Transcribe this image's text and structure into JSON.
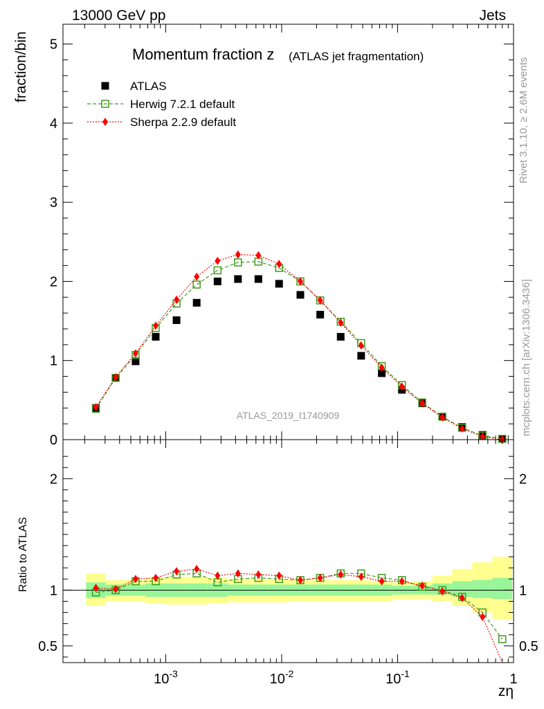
{
  "header": {
    "energy_label": "13000 GeV pp",
    "category_label": "Jets"
  },
  "side_labels": {
    "rivet": "Rivet 3.1.10, ≥ 2.6M events",
    "mcplots": "mcplots.cern.ch [arXiv:1306.3436]"
  },
  "chart_data": [
    {
      "type": "scatter",
      "title": "Momentum fraction z",
      "title_suffix": "(ATLAS jet fragmentation)",
      "ylabel": "fraction/bin",
      "xlabel": "zη",
      "x_scale": "log",
      "xlim": [
        0.00013,
        1.0
      ],
      "ylim": [
        0,
        5.25
      ],
      "y_ticks": [
        "0",
        "1",
        "2",
        "3",
        "4",
        "5"
      ],
      "x_ticks": [
        "10^-3",
        "10^-2",
        "10^-1",
        "1"
      ],
      "watermark": "ATLAS_2019_I1740909",
      "legend_position": "top-left",
      "colors": {
        "data": "#000000",
        "herwig": "#3f9a1a",
        "sherpa": "#ff0000"
      },
      "x": [
        0.00025,
        0.00037,
        0.00055,
        0.00082,
        0.00124,
        0.00185,
        0.0028,
        0.0042,
        0.0063,
        0.0095,
        0.0145,
        0.0215,
        0.0323,
        0.0485,
        0.073,
        0.109,
        0.163,
        0.243,
        0.36,
        0.54,
        0.8
      ],
      "series": [
        {
          "name": "ATLAS",
          "marker": "filled-square",
          "values": [
            0.4,
            0.78,
            0.99,
            1.3,
            1.51,
            1.73,
            2.0,
            2.03,
            2.03,
            1.97,
            1.83,
            1.58,
            1.3,
            1.06,
            0.84,
            0.63,
            0.46,
            0.29,
            0.16,
            0.06,
            0.01
          ]
        },
        {
          "name": "Herwig 7.2.1 default",
          "marker": "open-square",
          "line": "dashed",
          "values": [
            0.39,
            0.78,
            1.07,
            1.41,
            1.72,
            1.96,
            2.14,
            2.24,
            2.25,
            2.17,
            2.0,
            1.76,
            1.49,
            1.22,
            0.93,
            0.69,
            0.47,
            0.29,
            0.15,
            0.05,
            0.01
          ]
        },
        {
          "name": "Sherpa 2.2.9 default",
          "marker": "diamond",
          "line": "dotted",
          "values": [
            0.41,
            0.79,
            1.09,
            1.44,
            1.77,
            2.06,
            2.26,
            2.34,
            2.33,
            2.22,
            2.0,
            1.76,
            1.48,
            1.19,
            0.91,
            0.67,
            0.46,
            0.28,
            0.14,
            0.04,
            0.0
          ]
        }
      ]
    },
    {
      "type": "scatter",
      "ylabel": "Ratio to ATLAS",
      "xlabel": "zη",
      "x_scale": "log",
      "xlim": [
        0.00013,
        1.0
      ],
      "ylim": [
        0.35,
        2.35
      ],
      "y_ticks": [
        "0.5",
        "1",
        "2"
      ],
      "colors": {
        "inner_band": "#99f599",
        "outer_band": "#ffff90",
        "herwig": "#3f9a1a",
        "sherpa": "#ff0000"
      },
      "x": [
        0.00025,
        0.00037,
        0.00055,
        0.00082,
        0.00124,
        0.00185,
        0.0028,
        0.0042,
        0.0063,
        0.0095,
        0.0145,
        0.0215,
        0.0323,
        0.0485,
        0.073,
        0.109,
        0.163,
        0.243,
        0.36,
        0.54,
        0.8
      ],
      "bands": {
        "inner_low": [
          0.93,
          0.95,
          0.95,
          0.94,
          0.94,
          0.94,
          0.94,
          0.95,
          0.95,
          0.95,
          0.95,
          0.95,
          0.95,
          0.95,
          0.95,
          0.96,
          0.96,
          0.96,
          0.94,
          0.93,
          0.92
        ],
        "inner_high": [
          1.07,
          1.05,
          1.05,
          1.06,
          1.06,
          1.06,
          1.06,
          1.05,
          1.05,
          1.05,
          1.05,
          1.05,
          1.05,
          1.05,
          1.05,
          1.04,
          1.04,
          1.06,
          1.08,
          1.09,
          1.11
        ],
        "outer_low": [
          0.86,
          0.9,
          0.9,
          0.88,
          0.87,
          0.87,
          0.88,
          0.89,
          0.89,
          0.89,
          0.9,
          0.9,
          0.9,
          0.9,
          0.9,
          0.92,
          0.92,
          0.9,
          0.86,
          0.8,
          0.74
        ],
        "outer_high": [
          1.15,
          1.09,
          1.09,
          1.11,
          1.12,
          1.12,
          1.11,
          1.1,
          1.1,
          1.1,
          1.09,
          1.09,
          1.09,
          1.09,
          1.08,
          1.07,
          1.08,
          1.13,
          1.19,
          1.25,
          1.3
        ]
      },
      "series": [
        {
          "name": "Herwig 7.2.1 default",
          "marker": "open-square",
          "line": "dashed",
          "values": [
            0.98,
            1.0,
            1.08,
            1.08,
            1.14,
            1.15,
            1.07,
            1.1,
            1.11,
            1.1,
            1.09,
            1.11,
            1.15,
            1.15,
            1.11,
            1.09,
            1.03,
            1.0,
            0.94,
            0.8,
            0.56
          ]
        },
        {
          "name": "Sherpa 2.2.9 default",
          "marker": "diamond",
          "line": "dotted",
          "values": [
            1.02,
            1.01,
            1.1,
            1.11,
            1.17,
            1.19,
            1.13,
            1.15,
            1.14,
            1.13,
            1.09,
            1.11,
            1.14,
            1.12,
            1.08,
            1.08,
            1.04,
            0.99,
            0.93,
            0.76,
            0.31
          ]
        }
      ]
    }
  ]
}
